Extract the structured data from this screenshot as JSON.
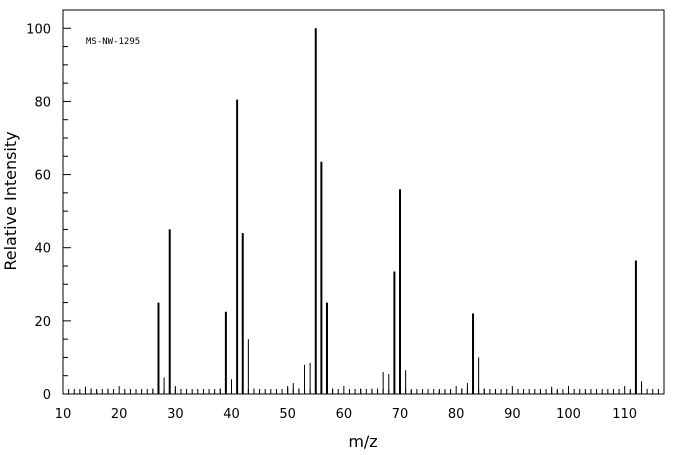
{
  "chart_data": {
    "type": "bar",
    "annotation": "MS-NW-1295",
    "xlabel": "m/z",
    "ylabel": "Relative Intensity",
    "xlim": [
      10,
      117
    ],
    "ylim": [
      0,
      105
    ],
    "x_ticks": [
      10,
      20,
      30,
      40,
      50,
      60,
      70,
      80,
      90,
      100,
      110
    ],
    "y_ticks": [
      0,
      20,
      40,
      60,
      80,
      100
    ],
    "grid": false,
    "series": [
      {
        "x": [
          14,
          15,
          16,
          18,
          26,
          27,
          28,
          29,
          30,
          38,
          39,
          40,
          41,
          42,
          43,
          44,
          50,
          51,
          52,
          53,
          54,
          55,
          56,
          57,
          58,
          63,
          65,
          66,
          67,
          68,
          69,
          70,
          71,
          72,
          77,
          78,
          79,
          81,
          82,
          83,
          84,
          85,
          95,
          97,
          98,
          111,
          112,
          113
        ],
        "values": [
          2,
          1.5,
          1,
          1.5,
          1.5,
          25,
          4.5,
          45,
          1.5,
          1.5,
          22.5,
          4,
          80.5,
          44,
          15,
          1.5,
          1.5,
          3,
          1.5,
          8,
          8.5,
          100,
          63.5,
          25,
          1.5,
          1.5,
          1.5,
          1.5,
          6,
          5.5,
          33.5,
          56,
          6.5,
          1,
          1,
          1,
          1,
          1.5,
          3,
          22,
          10,
          1.5,
          1,
          2,
          1,
          1,
          36.5,
          3.5
        ]
      }
    ]
  }
}
